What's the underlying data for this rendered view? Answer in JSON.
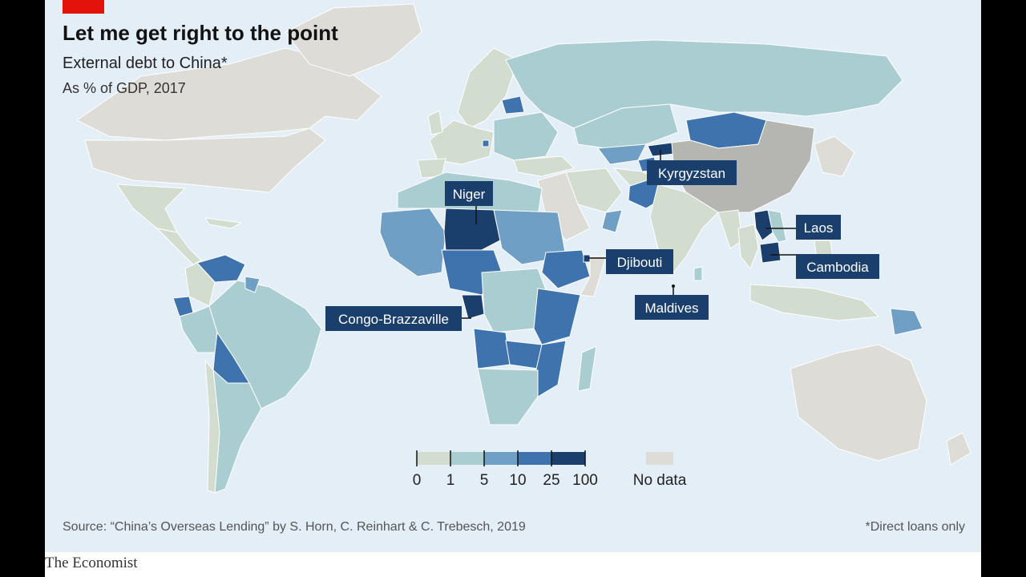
{
  "header": {
    "title": "Let me get right to the point",
    "subtitle": "External debt to China*",
    "unit": "As % of GDP, 2017"
  },
  "labels": {
    "niger": "Niger",
    "kyrgyzstan": "Kyrgyzstan",
    "laos": "Laos",
    "djibouti": "Djibouti",
    "cambodia": "Cambodia",
    "maldives": "Maldives",
    "congo": "Congo-Brazzaville"
  },
  "legend": {
    "ticks": [
      "0",
      "1",
      "5",
      "10",
      "25",
      "100"
    ],
    "no_data": "No data",
    "colors": [
      "#d2dccf",
      "#a9cdd1",
      "#6f9fc4",
      "#3f73ae",
      "#1b3f6c"
    ],
    "no_data_color": "#dddcd6"
  },
  "footer": {
    "source": "Source: “China’s Overseas Lending” by S. Horn, C. Reinhart & C. Trebesch, 2019",
    "footnote": "*Direct loans only",
    "publisher": "The Economist"
  },
  "colors": {
    "sea": "#e3eef6",
    "label_box": "#1b3f6c",
    "accent": "#e3120b"
  }
}
